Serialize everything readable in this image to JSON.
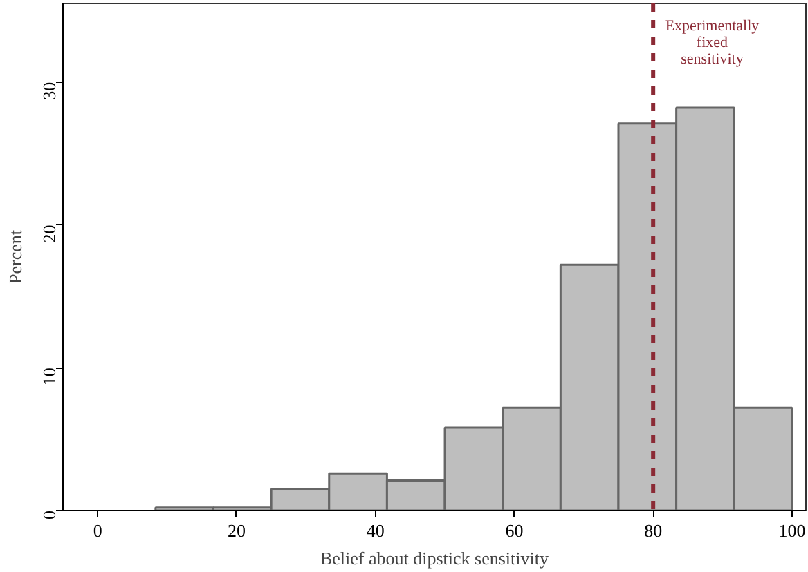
{
  "chart_data": {
    "type": "histogram",
    "xlabel": "Belief about dipstick sensitivity",
    "ylabel": "Percent",
    "bins": [
      8.333,
      16.667,
      25,
      33.333,
      41.667,
      50,
      58.333,
      66.667,
      75,
      83.333,
      91.667,
      100
    ],
    "values": [
      0.2,
      0.2,
      1.5,
      2.6,
      2.1,
      5.8,
      7.2,
      17.2,
      27.1,
      28.2,
      7.2
    ],
    "color": "#bebebe",
    "xlim": [
      -5,
      102
    ],
    "ylim": [
      0,
      35.5
    ],
    "xticks": [
      0,
      20,
      40,
      60,
      80,
      100
    ],
    "yticks": [
      0,
      10,
      20,
      30
    ],
    "ref_lines": [
      {
        "axis": "x",
        "value": 80,
        "label": "Experimentally\nfixed\nsensitivity",
        "color": "#8b2a35",
        "line_style": "dashed"
      }
    ],
    "grid": false
  }
}
